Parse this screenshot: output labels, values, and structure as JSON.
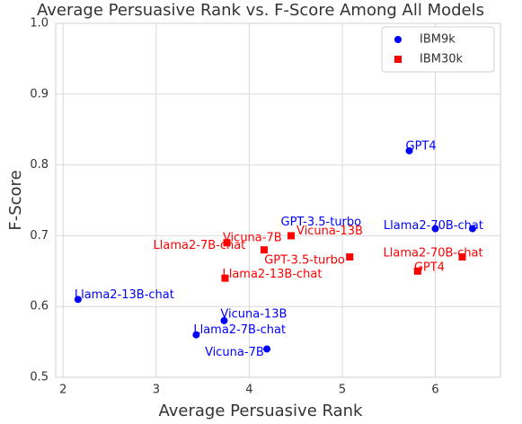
{
  "chart_data": {
    "type": "scatter",
    "title": "Average Persuasive Rank vs. F-Score Among All Models",
    "xlabel": "Average Persuasive Rank",
    "ylabel": "F-Score",
    "xlim": [
      1.92,
      6.7
    ],
    "ylim": [
      0.5,
      1.0
    ],
    "xticks": [
      2,
      3,
      4,
      5,
      6
    ],
    "yticks": [
      0.5,
      0.6,
      0.7,
      0.8,
      0.9,
      {
        "value": 1.0,
        "label": "1.0"
      }
    ],
    "grid": true,
    "legend": "upper right",
    "series": [
      {
        "name": "IBM9k",
        "color": "#0000ff",
        "marker": "circle",
        "labels": [
          "Llama2-13B-chat",
          "Llama2-7B-chat",
          "Vicuna-13B",
          "Vicuna-7B",
          "GPT-3.5-turbo",
          "GPT4",
          "Llama2-70B-chat"
        ],
        "x": [
          2.16,
          3.43,
          3.73,
          4.19,
          6.0,
          5.72,
          6.4
        ],
        "values": [
          0.61,
          0.56,
          0.58,
          0.54,
          0.71,
          0.82,
          0.71
        ]
      },
      {
        "name": "IBM30k",
        "color": "#ff0000",
        "marker": "square",
        "labels": [
          "Llama2-7B-chat",
          "Vicuna-7B",
          "Vicuna-13B",
          "GPT-3.5-turbo",
          "Llama2-13B-chat",
          "GPT4",
          "Llama2-70B-chat"
        ],
        "x": [
          3.76,
          4.16,
          4.45,
          5.08,
          3.74,
          5.81,
          6.29
        ],
        "values": [
          0.69,
          0.68,
          0.7,
          0.67,
          0.64,
          0.65,
          0.67
        ]
      }
    ]
  }
}
